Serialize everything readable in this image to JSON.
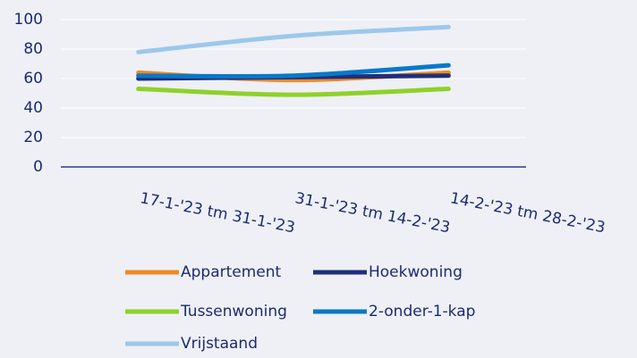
{
  "chart_data": {
    "type": "line",
    "categories": [
      "17-1-'23 tm 31-1-'23",
      "31-1-'23 tm 14-2-'23",
      "14-2-'23 tm 28-2-'23"
    ],
    "series": [
      {
        "name": "Appartement",
        "color": "#f08a24",
        "values": [
          64,
          59,
          64
        ]
      },
      {
        "name": "Hoekwoning",
        "color": "#1f2f7a",
        "values": [
          60,
          61,
          62
        ]
      },
      {
        "name": "Tussenwoning",
        "color": "#8fd12a",
        "values": [
          53,
          49,
          53
        ]
      },
      {
        "name": "2-onder-1-kap",
        "color": "#0a78c8",
        "values": [
          62,
          62,
          69
        ]
      },
      {
        "name": "Vrijstaand",
        "color": "#9cc8ea",
        "values": [
          78,
          89,
          95
        ]
      }
    ],
    "ylim": [
      0,
      100
    ],
    "yticks": [
      0,
      20,
      40,
      60,
      80,
      100
    ],
    "grid": true,
    "smooth": true
  }
}
